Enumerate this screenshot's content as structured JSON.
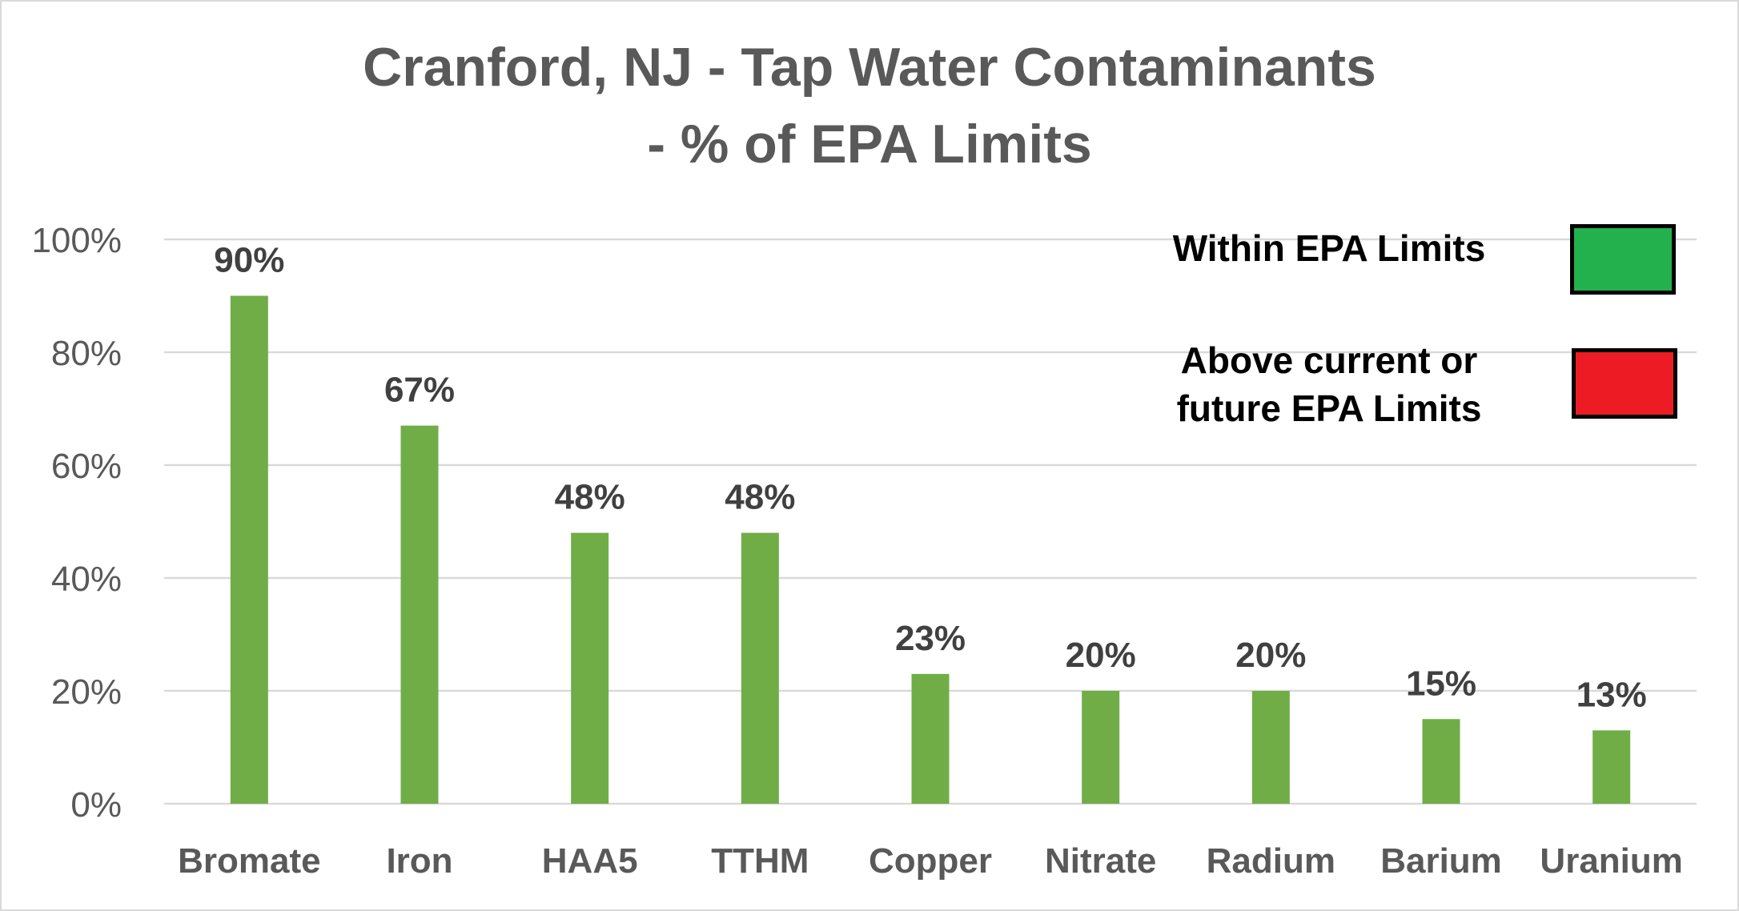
{
  "chart_data": {
    "type": "bar",
    "title": [
      "Cranford, NJ - Tap Water Contaminants",
      "- % of EPA  Limits"
    ],
    "xlabel": "",
    "ylabel": "",
    "categories": [
      "Bromate",
      "Iron",
      "HAA5",
      "TTHM",
      "Copper",
      "Nitrate",
      "Radium",
      "Barium",
      "Uranium"
    ],
    "values": [
      90,
      67,
      48,
      48,
      23,
      20,
      20,
      15,
      13
    ],
    "data_labels": [
      "90%",
      "67%",
      "48%",
      "48%",
      "23%",
      "20%",
      "20%",
      "15%",
      "13%"
    ],
    "ylim": [
      0,
      100
    ],
    "yticks": [
      0,
      20,
      40,
      60,
      80,
      100
    ],
    "ytick_labels": [
      "0%",
      "20%",
      "40%",
      "60%",
      "80%",
      "100%"
    ],
    "grid": true,
    "bar_color": "#70AD47",
    "legend": {
      "placement": "top-right",
      "items": [
        {
          "label": "Within  EPA Limits",
          "color": "#22B14C"
        },
        {
          "label": "Above current or future EPA Limits",
          "line1": "Above current or",
          "line2": "future  EPA Limits",
          "color": "#ED1C24"
        }
      ]
    }
  }
}
